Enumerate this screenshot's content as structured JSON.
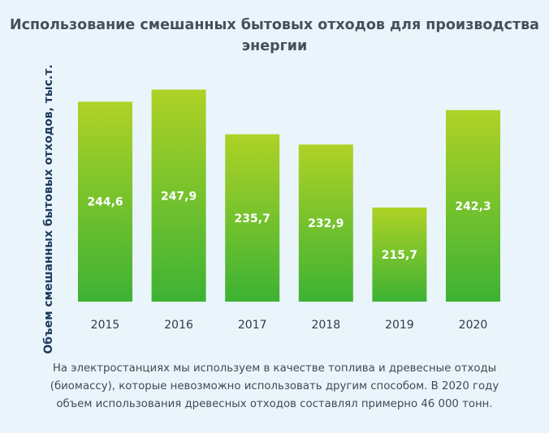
{
  "chart_data": {
    "type": "bar",
    "title": "Использование смешанных бытовых отходов для производства энергии",
    "ylabel": "Объем смешанных бытовых отходов, тыс.т.",
    "xlabel": "",
    "categories": [
      "2015",
      "2016",
      "2017",
      "2018",
      "2019",
      "2020"
    ],
    "values": [
      244.6,
      247.9,
      235.7,
      232.9,
      215.7,
      242.3
    ],
    "value_labels": [
      "244,6",
      "247,9",
      "235,7",
      "232,9",
      "215,7",
      "242,3"
    ],
    "ylim": [
      190,
      250
    ],
    "grid": false,
    "legend": "none",
    "colors": {
      "bar_top": "#afd226",
      "bar_bottom": "#3db234",
      "label": "#ffffff"
    }
  },
  "footnote": "На электростанциях мы используем в качестве топлива и древесные отходы (биомассу), которые невозможно использовать другим способом. В 2020 году объем использования древесных отходов составлял примерно 46 000 тонн."
}
